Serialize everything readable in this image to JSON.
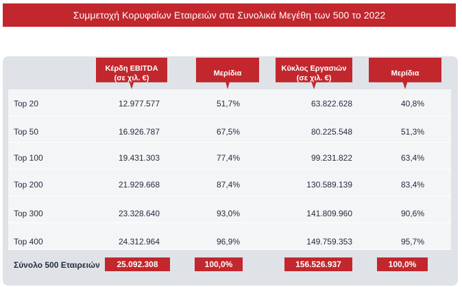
{
  "title": "Συμμετοχή Κορυφαίων Εταιρειών στα Συνολικά Μεγέθη των 500 το 2022",
  "headers": {
    "ebitda_line1": "Κέρδη EBITDA",
    "ebitda_line2": "(σε χιλ. €)",
    "share1": "Μερίδια",
    "turnover_line1": "Κύκλος Εργασιών",
    "turnover_line2": "(σε χιλ. €)",
    "share2": "Μερίδια"
  },
  "rows": [
    {
      "label": "Top 20",
      "ebitda": "12.977.577",
      "ebitda_share": "51,7%",
      "turnover": "63.822.628",
      "turnover_share": "40,8%"
    },
    {
      "label": "Top 50",
      "ebitda": "16.926.787",
      "ebitda_share": "67,5%",
      "turnover": "80.225.548",
      "turnover_share": "51,3%"
    },
    {
      "label": "Top 100",
      "ebitda": "19.431.303",
      "ebitda_share": "77,4%",
      "turnover": "99.231.822",
      "turnover_share": "63,4%"
    },
    {
      "label": "Top 200",
      "ebitda": "21.929.668",
      "ebitda_share": "87,4%",
      "turnover": "130.589.139",
      "turnover_share": "83,4%"
    },
    {
      "label": "Top 300",
      "ebitda": "23.328.640",
      "ebitda_share": "93,0%",
      "turnover": "141.809.960",
      "turnover_share": "90,6%"
    },
    {
      "label": "Top 400",
      "ebitda": "24.312.964",
      "ebitda_share": "96,9%",
      "turnover": "149.759.353",
      "turnover_share": "95,7%"
    }
  ],
  "total": {
    "label": "Σύνολο 500 Εταιρειών",
    "ebitda": "25.092.308",
    "ebitda_share": "100,0%",
    "turnover": "156.526.937",
    "turnover_share": "100,0%"
  },
  "colors": {
    "accent": "#c1272d",
    "panel": "#dfe3e8",
    "row": "#f4f5f7",
    "text": "#1f2a3a"
  }
}
